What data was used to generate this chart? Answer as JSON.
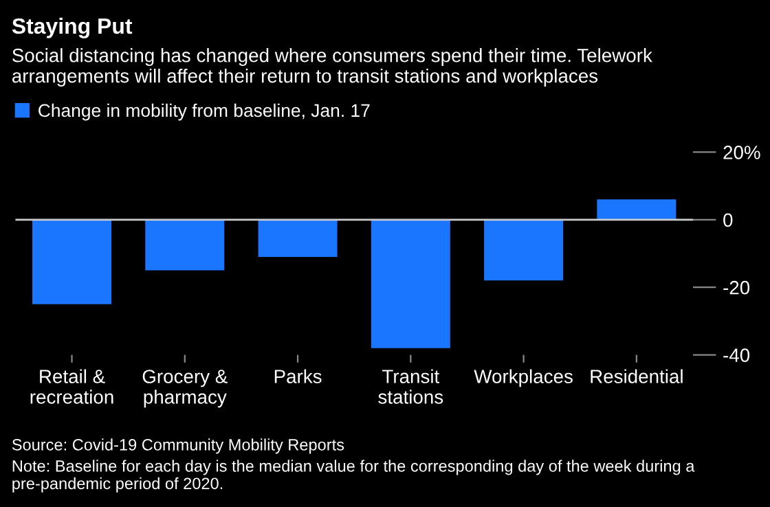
{
  "chart_data": {
    "type": "bar",
    "title": "Staying Put",
    "subtitle": "Social distancing has changed where consumers spend their time. Telework arrangements will affect their return to transit stations and workplaces",
    "categories": [
      "Retail &\nrecreation",
      "Grocery &\npharmacy",
      "Parks",
      "Transit\nstations",
      "Workplaces",
      "Residential"
    ],
    "series": [
      {
        "name": "Change in mobility from baseline, Jan. 17",
        "color": "#1a75ff",
        "values": [
          -25,
          -15,
          -11,
          -38,
          -18,
          6
        ]
      }
    ],
    "ylim": [
      -40,
      20
    ],
    "yticks": [
      {
        "value": 20,
        "label": "20%"
      },
      0,
      -20,
      -40
    ],
    "ref_lines": [
      {
        "axis": "y",
        "value": 0,
        "color": "#cccccc"
      }
    ],
    "legend": "top left",
    "grid": false,
    "annotations": [
      "Source: Covid-19 Community Mobility Reports",
      "Note: Baseline for each day is the median value for the corresponding day of the week during a pre-pandemic period of 2020."
    ]
  }
}
